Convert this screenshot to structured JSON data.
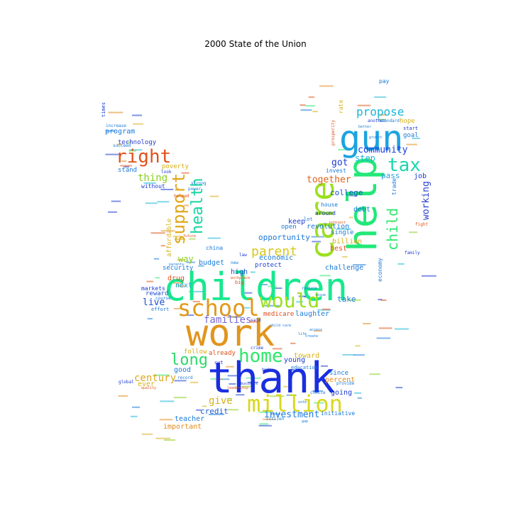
{
  "title": "2000 State of the Union",
  "words": [
    {
      "text": "thank",
      "color": "#1a2ee0"
    },
    {
      "text": "work",
      "color": "#e0951e"
    },
    {
      "text": "children",
      "color": "#17e88e"
    },
    {
      "text": "help",
      "color": "#22e878"
    },
    {
      "text": "gun",
      "color": "#1ea3e0"
    },
    {
      "text": "school",
      "color": "#e09a1a"
    },
    {
      "text": "care",
      "color": "#9be020"
    },
    {
      "text": "million",
      "color": "#d9d820"
    },
    {
      "text": "would",
      "color": "#9be020"
    },
    {
      "text": "home",
      "color": "#2ee86a"
    },
    {
      "text": "right",
      "color": "#e0521a"
    },
    {
      "text": "tax",
      "color": "#1ad6b0"
    },
    {
      "text": "support",
      "color": "#e0a81a"
    },
    {
      "text": "health",
      "color": "#17d6a0"
    },
    {
      "text": "long",
      "color": "#2ed86a"
    },
    {
      "text": "child",
      "color": "#2ee870"
    },
    {
      "text": "parent",
      "color": "#d8c81a"
    },
    {
      "text": "propose",
      "color": "#17b6d8"
    },
    {
      "text": "families",
      "color": "#7a6ad0"
    },
    {
      "text": "century",
      "color": "#e0a81a"
    },
    {
      "text": "give",
      "color": "#d8b01a"
    },
    {
      "text": "investment",
      "color": "#1a7ae0"
    },
    {
      "text": "community",
      "color": "#1a3ae0"
    },
    {
      "text": "working",
      "color": "#2a40d0"
    },
    {
      "text": "together",
      "color": "#e0621a"
    },
    {
      "text": "live",
      "color": "#1a50d0"
    },
    {
      "text": "thing",
      "color": "#8ad020"
    },
    {
      "text": "opportunity",
      "color": "#1a7ad8"
    },
    {
      "text": "important",
      "color": "#e08a1a"
    },
    {
      "text": "credit",
      "color": "#1a5ad0"
    },
    {
      "text": "got",
      "color": "#1a3ad0"
    },
    {
      "text": "college",
      "color": "#1a50d0"
    },
    {
      "text": "step",
      "color": "#17b6d8"
    },
    {
      "text": "pass",
      "color": "#2ea0d8"
    },
    {
      "text": "technology",
      "color": "#2a40d0"
    },
    {
      "text": "program",
      "color": "#1a7ae0"
    },
    {
      "text": "poverty",
      "color": "#d8b01a"
    },
    {
      "text": "affordable",
      "color": "#d8b01a"
    },
    {
      "text": "economic",
      "color": "#1a7ad8"
    },
    {
      "text": "protect",
      "color": "#1a40d0"
    },
    {
      "text": "budget",
      "color": "#1a7ad8"
    },
    {
      "text": "security",
      "color": "#1a7ad8"
    },
    {
      "text": "next",
      "color": "#1aa0d8"
    },
    {
      "text": "reward",
      "color": "#1a50d0"
    },
    {
      "text": "markets",
      "color": "#1a3ad0"
    },
    {
      "text": "economy",
      "color": "#1a7ad8"
    },
    {
      "text": "challenge",
      "color": "#1a7ad8"
    },
    {
      "text": "revolution",
      "color": "#1a7ad8"
    },
    {
      "text": "single",
      "color": "#1a7ad8"
    },
    {
      "text": "debt",
      "color": "#1a7ad8"
    },
    {
      "text": "keep",
      "color": "#1a3ad0"
    },
    {
      "text": "open",
      "color": "#1a7ad8"
    },
    {
      "text": "billion",
      "color": "#d8b01a"
    },
    {
      "text": "best",
      "color": "#e0521a"
    },
    {
      "text": "take",
      "color": "#1a7ad8"
    },
    {
      "text": "laughter",
      "color": "#1a7ad8"
    },
    {
      "text": "medicare",
      "color": "#e04a1a"
    },
    {
      "text": "high",
      "color": "#1a50d0"
    },
    {
      "text": "ever",
      "color": "#d8b01a"
    },
    {
      "text": "good",
      "color": "#1a7ad8"
    },
    {
      "text": "young",
      "color": "#1a3ad0"
    },
    {
      "text": "toward",
      "color": "#d8b01a"
    },
    {
      "text": "percent",
      "color": "#e08a1a"
    },
    {
      "text": "since",
      "color": "#1a7ad8"
    },
    {
      "text": "going",
      "color": "#1a3ad0"
    },
    {
      "text": "already",
      "color": "#e0521a"
    },
    {
      "text": "follow",
      "color": "#d8b01a"
    },
    {
      "text": "teacher",
      "color": "#1a7ad8"
    },
    {
      "text": "way",
      "color": "#8ad020"
    },
    {
      "text": "drug",
      "color": "#e0521a"
    },
    {
      "text": "goal",
      "color": "#1a7ad8"
    },
    {
      "text": "hope",
      "color": "#d8b01a"
    },
    {
      "text": "job",
      "color": "#1a3ad0"
    },
    {
      "text": "trade",
      "color": "#1a7ad8"
    },
    {
      "text": "education",
      "color": "#1a7ad8"
    },
    {
      "text": "china",
      "color": "#1a7ad8"
    },
    {
      "text": "initiative",
      "color": "#1a7ad8"
    },
    {
      "text": "start",
      "color": "#1a3ad0"
    },
    {
      "text": "without",
      "color": "#1a3ad0"
    },
    {
      "text": "stand",
      "color": "#1a7ad8"
    },
    {
      "text": "pay",
      "color": "#1a7ad8"
    },
    {
      "text": "another",
      "color": "#1a3ad0"
    },
    {
      "text": "house",
      "color": "#1a7ad8"
    },
    {
      "text": "around",
      "color": "#1a3ad0"
    },
    {
      "text": "lot",
      "color": "#1a7ad8"
    },
    {
      "text": "invest",
      "color": "#1a7ad8"
    },
    {
      "text": "effort",
      "color": "#1a7ad8"
    },
    {
      "text": "fight",
      "color": "#e0521a"
    },
    {
      "text": "family",
      "color": "#1a3ad0"
    },
    {
      "text": "succeed",
      "color": "#1a7ad8"
    },
    {
      "text": "helped",
      "color": "#e0521a"
    },
    {
      "text": "times",
      "color": "#1a3ad0"
    },
    {
      "text": "increase",
      "color": "#1a7ad8"
    },
    {
      "text": "course",
      "color": "#1a7ad8"
    },
    {
      "text": "big",
      "color": "#e0521a"
    },
    {
      "text": "crime",
      "color": "#1a3ad0"
    },
    {
      "text": "global",
      "color": "#1a3ad0"
    },
    {
      "text": "quality",
      "color": "#e0521a"
    },
    {
      "text": "citizen",
      "color": "#1a7ad8"
    },
    {
      "text": "look",
      "color": "#1a3ad0"
    },
    {
      "text": "strong",
      "color": "#1a7ad8"
    },
    {
      "text": "business",
      "color": "#1a3ad0"
    },
    {
      "text": "law",
      "color": "#1a3ad0"
    },
    {
      "text": "power",
      "color": "#1a7ad8"
    },
    {
      "text": "new",
      "color": "#1a7ad8"
    },
    {
      "text": "back",
      "color": "#1a3ad0"
    },
    {
      "text": "cut",
      "color": "#1a3ad0"
    },
    {
      "text": "rate",
      "color": "#d8b01a"
    },
    {
      "text": "prosperity",
      "color": "#e0521a"
    },
    {
      "text": "reduce",
      "color": "#1a7ad8"
    },
    {
      "text": "issue",
      "color": "#1a7ad8"
    },
    {
      "text": "said",
      "color": "#1a3ad0"
    },
    {
      "text": "make",
      "color": "#e0521a"
    },
    {
      "text": "provide",
      "color": "#1a7ad8"
    },
    {
      "text": "record",
      "color": "#1a7ad8"
    },
    {
      "text": "leadership",
      "color": "#e0521a"
    },
    {
      "text": "choice",
      "color": "#1a7ad8"
    },
    {
      "text": "gap",
      "color": "#1a7ad8"
    },
    {
      "text": "workplace",
      "color": "#e0521a"
    },
    {
      "text": "future",
      "color": "#e0521a"
    },
    {
      "text": "parents",
      "color": "#1a7ad8"
    },
    {
      "text": "interest",
      "color": "#e0521a"
    },
    {
      "text": "create",
      "color": "#1a7ad8"
    },
    {
      "text": "access",
      "color": "#1a7ad8"
    },
    {
      "text": "life",
      "color": "#1a7ad8"
    },
    {
      "text": "standard",
      "color": "#1a7ad8"
    },
    {
      "text": "child care",
      "color": "#1a7ad8"
    },
    {
      "text": "vote",
      "color": "#1a7ad8"
    },
    {
      "text": "growth",
      "color": "#1a7ad8"
    },
    {
      "text": "better",
      "color": "#1a7ad8"
    }
  ]
}
